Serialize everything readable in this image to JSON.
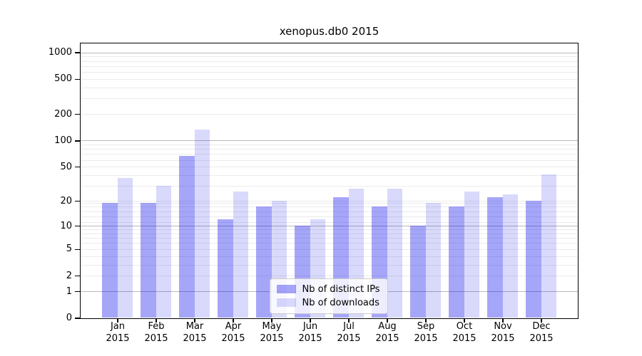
{
  "chart_data": {
    "type": "bar",
    "title": "xenopus.db0 2015",
    "categories": [
      "Jan",
      "Feb",
      "Mar",
      "Apr",
      "May",
      "Jun",
      "Jul",
      "Aug",
      "Sep",
      "Oct",
      "Nov",
      "Dec"
    ],
    "category_year": "2015",
    "series": [
      {
        "name": "Nb of distinct IPs",
        "color": "#0000EE59",
        "values": [
          19,
          19,
          67,
          12,
          17,
          10,
          22,
          17,
          10,
          17,
          22,
          20
        ]
      },
      {
        "name": "Nb of downloads",
        "color": "#0000EE26",
        "values": [
          37,
          30,
          132,
          26,
          20,
          12,
          28,
          28,
          19,
          26,
          24,
          41
        ]
      }
    ],
    "y_ticks": [
      0,
      1,
      2,
      5,
      10,
      20,
      50,
      100,
      200,
      500,
      1000
    ],
    "y_scale": "log10(1+x)",
    "ylim": [
      0,
      1100
    ],
    "grid": {
      "orientation": "horizontal",
      "major_values": [
        1,
        10,
        100,
        1000
      ],
      "minor_values": [
        2,
        3,
        4,
        5,
        6,
        7,
        8,
        9,
        11,
        13,
        15,
        17,
        19,
        20,
        30,
        40,
        50,
        60,
        70,
        80,
        90,
        200,
        300,
        400,
        500,
        600,
        700,
        800,
        900
      ],
      "major_color": "#b9b9b9",
      "minor_color": "#ebebeb"
    },
    "legend": {
      "position": "bottom-center"
    },
    "axis_color": "#000000",
    "background_color": "#ffffff"
  }
}
